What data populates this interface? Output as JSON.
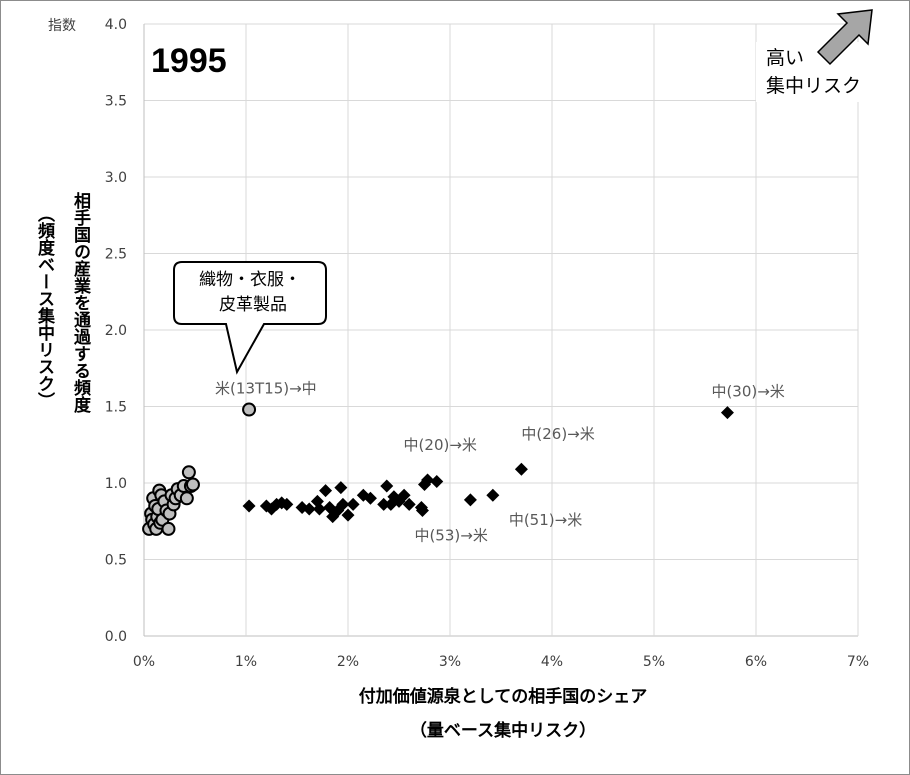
{
  "chart_data": {
    "type": "scatter",
    "title": "1995",
    "ylabel_unit": "指数",
    "xlabel": "付加価値源泉としての相手国のシェア",
    "xlabel_sub": "（量ベース集中リスク）",
    "ylabel": "相手国の産業を通過する頻度",
    "ylabel_sub": "（頻度ベース集中リスク）",
    "xlim": [
      0,
      7
    ],
    "ylim": [
      0,
      4
    ],
    "x_ticks": [
      "0%",
      "1%",
      "2%",
      "3%",
      "4%",
      "5%",
      "6%",
      "7%"
    ],
    "y_ticks": [
      "0.0",
      "0.5",
      "1.0",
      "1.5",
      "2.0",
      "2.5",
      "3.0",
      "3.5",
      "4.0"
    ],
    "grid": true,
    "series": [
      {
        "marker": "circle",
        "color": "#bfbfbf",
        "points": [
          [
            0.05,
            0.7
          ],
          [
            0.07,
            0.8
          ],
          [
            0.08,
            0.76
          ],
          [
            0.09,
            0.9
          ],
          [
            0.1,
            0.73
          ],
          [
            0.11,
            0.85
          ],
          [
            0.12,
            0.7
          ],
          [
            0.13,
            0.78
          ],
          [
            0.14,
            0.83
          ],
          [
            0.15,
            0.95
          ],
          [
            0.16,
            0.74
          ],
          [
            0.17,
            0.92
          ],
          [
            0.18,
            0.76
          ],
          [
            0.2,
            0.88
          ],
          [
            0.22,
            0.82
          ],
          [
            0.24,
            0.7
          ],
          [
            0.25,
            0.8
          ],
          [
            0.27,
            0.92
          ],
          [
            0.29,
            0.86
          ],
          [
            0.31,
            0.9
          ],
          [
            0.33,
            0.96
          ],
          [
            0.36,
            0.92
          ],
          [
            0.39,
            0.98
          ],
          [
            0.42,
            0.9
          ],
          [
            0.44,
            1.07
          ],
          [
            0.46,
            0.98
          ],
          [
            0.48,
            0.99
          ],
          [
            1.03,
            1.48
          ]
        ]
      },
      {
        "marker": "diamond",
        "color": "#000000",
        "points": [
          [
            1.03,
            0.85
          ],
          [
            1.2,
            0.85
          ],
          [
            1.25,
            0.83
          ],
          [
            1.3,
            0.86
          ],
          [
            1.35,
            0.87
          ],
          [
            1.4,
            0.86
          ],
          [
            1.55,
            0.84
          ],
          [
            1.62,
            0.83
          ],
          [
            1.7,
            0.88
          ],
          [
            1.72,
            0.83
          ],
          [
            1.78,
            0.95
          ],
          [
            1.82,
            0.84
          ],
          [
            1.85,
            0.78
          ],
          [
            1.9,
            0.82
          ],
          [
            1.93,
            0.97
          ],
          [
            1.95,
            0.86
          ],
          [
            2.0,
            0.79
          ],
          [
            2.05,
            0.86
          ],
          [
            2.15,
            0.92
          ],
          [
            2.22,
            0.9
          ],
          [
            2.35,
            0.86
          ],
          [
            2.38,
            0.98
          ],
          [
            2.42,
            0.86
          ],
          [
            2.45,
            0.91
          ],
          [
            2.5,
            0.88
          ],
          [
            2.55,
            0.92
          ],
          [
            2.6,
            0.86
          ],
          [
            2.72,
            0.84
          ],
          [
            2.73,
            0.82
          ],
          [
            2.75,
            0.99
          ],
          [
            2.78,
            1.02
          ],
          [
            2.87,
            1.01
          ],
          [
            3.2,
            0.89
          ],
          [
            3.42,
            0.92
          ],
          [
            3.7,
            1.09
          ],
          [
            5.72,
            1.46
          ]
        ]
      }
    ],
    "labels": [
      {
        "text": "米(13T15)→中",
        "x": 1.03,
        "y": 1.48
      },
      {
        "text": "中(30)→米",
        "x": 5.72,
        "y": 1.46
      },
      {
        "text": "中(20)→米",
        "x": 2.78,
        "y": 1.02
      },
      {
        "text": "中(26)→米",
        "x": 3.7,
        "y": 1.09
      },
      {
        "text": "中(53)→米",
        "x": 2.73,
        "y": 0.82
      },
      {
        "text": "中(51)→米",
        "x": 3.42,
        "y": 0.92
      }
    ],
    "callout": {
      "lines": [
        "織物・衣服・",
        "皮革製品"
      ]
    },
    "risk_note": {
      "lines": [
        "高い",
        "集中リスク"
      ]
    }
  }
}
